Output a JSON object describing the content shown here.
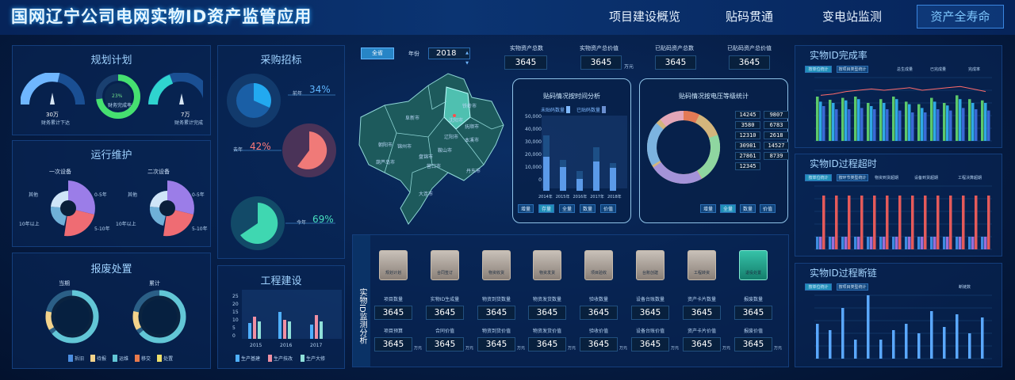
{
  "header": {
    "title": "国网辽宁公司电网实物ID资产监管应用",
    "nav": [
      "项目建设概览",
      "贴码贯通",
      "变电站监测",
      "资产全寿命"
    ]
  },
  "plan": {
    "title": "规划计划",
    "g1_value": "30万",
    "g1_label": "财务累计下达",
    "g2_value": "23%",
    "g2_label": "财务完成率",
    "g3_value": "7万",
    "g3_label": "财务累计完成"
  },
  "ops": {
    "title": "运行维护",
    "c1": "一次设备",
    "c2": "二次设备",
    "l1": "其他",
    "l2": "10年以上",
    "l3": "0-5年",
    "l4": "5-10年"
  },
  "scrap": {
    "title": "报废处置",
    "c1": "当期",
    "c2": "累计",
    "legend": [
      "拆旧",
      "待报",
      "运维",
      "移交",
      "处置"
    ]
  },
  "purchase": {
    "title": "采购招标",
    "r1_label": "前年",
    "r1_value": "34%",
    "r2_label": "去年",
    "r2_value": "42%",
    "r3_label": "今年",
    "r3_value": "69%"
  },
  "eng": {
    "title": "工程建设",
    "years": [
      "2015",
      "2016",
      "2017"
    ],
    "legend": [
      "生产基建",
      "生产技改",
      "生产大修"
    ],
    "yticks": [
      "25",
      "20",
      "15",
      "10",
      "5",
      "0"
    ]
  },
  "filters": {
    "province": "全省",
    "year_label": "年份",
    "year": "2018"
  },
  "kpis": [
    {
      "label": "实物资产总数",
      "value": "3645"
    },
    {
      "label": "实物资产总价值",
      "value": "3645",
      "unit": "万元"
    },
    {
      "label": "已贴码资产总数",
      "value": "3645"
    },
    {
      "label": "已贴码资产总价值",
      "value": "3645"
    }
  ],
  "map": {
    "cities": [
      "铁岭市",
      "抚顺市",
      "沈阳市",
      "阜新市",
      "朝阳市",
      "锦州市",
      "鞍山市",
      "辽阳市",
      "本溪市",
      "丹东市",
      "营口市",
      "葫芦岛市",
      "盘锦市",
      "大连市"
    ]
  },
  "timechart": {
    "title": "贴码情况按时间分析",
    "legend": [
      "未贴码数量",
      "已贴码数量"
    ],
    "yticks": [
      "50,000",
      "40,000",
      "30,000",
      "20,000",
      "10,000",
      "0"
    ],
    "years": [
      "2014年",
      "2015年",
      "2016年",
      "2017年",
      "2018年"
    ],
    "btns": [
      "增量",
      "存量",
      "全量",
      "数量",
      "价值"
    ]
  },
  "voltchart": {
    "title": "贴码情况按电压等级统计",
    "pairs": [
      [
        "14245",
        "9807"
      ],
      [
        "3580",
        "6783"
      ],
      [
        "12310",
        "2618"
      ],
      [
        "30981",
        "14527"
      ],
      [
        "27861",
        "8739"
      ],
      [
        "12345",
        ""
      ]
    ],
    "btns": [
      "增量",
      "全量",
      "数量",
      "价值"
    ]
  },
  "idmon": {
    "title": "实物ID监测分析",
    "steps": [
      "规划计划",
      "合同签订",
      "物资收货",
      "物资发货",
      "项目验收",
      "台账创建",
      "工程转资",
      "退役处置"
    ],
    "r1": [
      "项目数量",
      "实物ID生成量",
      "物资到货数量",
      "物资发货数量",
      "验收数量",
      "设备台账数量",
      "资产卡片数量",
      "报废数量"
    ],
    "r2": [
      "项目预算",
      "合同价值",
      "物资到货价值",
      "物资发货价值",
      "验收价值",
      "设备台账价值",
      "资产卡片价值",
      "报废价值"
    ],
    "value": "3645",
    "unit": "万元"
  },
  "rate": {
    "title": "实物ID完成率",
    "tabs": [
      "按单位统计",
      "按项目类型统计"
    ],
    "legend": [
      "总生成量",
      "已完成量",
      "完成率"
    ],
    "yticks": [
      "1000",
      "900",
      "800",
      "700",
      "600",
      "500",
      "400",
      "300",
      "200",
      "100",
      "0"
    ],
    "rticks": [
      "100%",
      "90%",
      "80%",
      "70%",
      "60%",
      "50%",
      "40%",
      "30%",
      "20%",
      "10%",
      "0%"
    ],
    "cats": [
      "沈阳",
      "大连",
      "鞍山",
      "抚顺",
      "本溪",
      "丹东",
      "锦州",
      "营口",
      "阜新",
      "辽阳",
      "铁岭",
      "朝阳",
      "盘锦",
      "葫芦岛"
    ]
  },
  "overtime": {
    "title": "实物ID过程超时",
    "tabs": [
      "按单位统计",
      "按环节类型统计"
    ],
    "legend": [
      "物资到货超期",
      "设备到货超期",
      "工程决算超期"
    ]
  },
  "breaks": {
    "title": "实物ID过程断链",
    "tabs": [
      "按单位统计",
      "按项目类型统计"
    ],
    "legend": [
      "断链数"
    ]
  }
}
